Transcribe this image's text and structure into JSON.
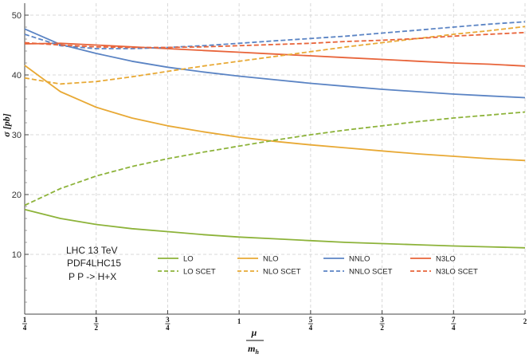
{
  "chart_data": {
    "type": "line",
    "title": "",
    "ylabel": "σ [pb]",
    "xlabel": {
      "numerator": "μ",
      "denominator": "m",
      "denominator_sub": "h"
    },
    "xlim": [
      0.25,
      2
    ],
    "ylim": [
      0,
      52
    ],
    "x": [
      0.25,
      0.375,
      0.5,
      0.625,
      0.75,
      0.875,
      1.0,
      1.125,
      1.25,
      1.375,
      1.5,
      1.625,
      1.75,
      1.875,
      2.0
    ],
    "x_ticks": [
      {
        "value": 0.25,
        "num": "1",
        "den": "4"
      },
      {
        "value": 0.5,
        "num": "1",
        "den": "2"
      },
      {
        "value": 0.75,
        "num": "3",
        "den": "4"
      },
      {
        "value": 1.0,
        "num": "1",
        "den": ""
      },
      {
        "value": 1.25,
        "num": "5",
        "den": "4"
      },
      {
        "value": 1.5,
        "num": "3",
        "den": "2"
      },
      {
        "value": 1.75,
        "num": "7",
        "den": "4"
      },
      {
        "value": 2.0,
        "num": "2",
        "den": ""
      }
    ],
    "y_ticks": [
      10,
      20,
      30,
      40,
      50
    ],
    "grid": true,
    "legend_position": "bottom-center",
    "series": [
      {
        "name": "LO",
        "style": "solid",
        "color": "#8db33a",
        "values": [
          17.5,
          16.0,
          15.0,
          14.3,
          13.8,
          13.3,
          12.9,
          12.6,
          12.3,
          12.0,
          11.8,
          11.6,
          11.4,
          11.25,
          11.1
        ]
      },
      {
        "name": "NLO",
        "style": "solid",
        "color": "#e8a935",
        "values": [
          41.6,
          37.2,
          34.6,
          32.8,
          31.5,
          30.5,
          29.6,
          28.9,
          28.3,
          27.8,
          27.3,
          26.8,
          26.4,
          26.0,
          25.7
        ]
      },
      {
        "name": "NNLO",
        "style": "solid",
        "color": "#5b84c4",
        "values": [
          47.7,
          45.1,
          43.6,
          42.3,
          41.3,
          40.5,
          39.8,
          39.2,
          38.6,
          38.1,
          37.6,
          37.2,
          36.8,
          36.5,
          36.2
        ]
      },
      {
        "name": "N3LO",
        "style": "solid",
        "color": "#e8643a",
        "values": [
          45.2,
          45.3,
          45.0,
          44.7,
          44.4,
          44.1,
          43.8,
          43.5,
          43.2,
          42.9,
          42.6,
          42.3,
          42.0,
          41.8,
          41.5
        ]
      },
      {
        "name": "LO SCET",
        "style": "dashed",
        "color": "#8db33a",
        "values": [
          18.2,
          21.0,
          23.1,
          24.7,
          26.0,
          27.1,
          28.1,
          29.1,
          30.0,
          30.8,
          31.5,
          32.2,
          32.8,
          33.3,
          33.8
        ]
      },
      {
        "name": "NLO SCET",
        "style": "dashed",
        "color": "#e8a935",
        "values": [
          39.5,
          38.5,
          38.9,
          39.7,
          40.6,
          41.5,
          42.3,
          43.1,
          43.9,
          44.7,
          45.4,
          46.1,
          46.8,
          47.4,
          48.1
        ]
      },
      {
        "name": "NNLO SCET",
        "style": "dashed",
        "color": "#5b84c4",
        "values": [
          46.8,
          44.9,
          44.4,
          44.4,
          44.6,
          44.9,
          45.3,
          45.7,
          46.1,
          46.5,
          47.0,
          47.5,
          48.0,
          48.5,
          48.9
        ]
      },
      {
        "name": "N3LO SCET",
        "style": "dashed",
        "color": "#e8643a",
        "values": [
          45.4,
          45.0,
          44.7,
          44.6,
          44.6,
          44.7,
          44.9,
          45.1,
          45.3,
          45.6,
          45.8,
          46.1,
          46.5,
          46.8,
          47.1
        ]
      }
    ],
    "annotations": [
      "LHC 13 TeV",
      "PDF4LHC15",
      "P P -> H+X"
    ]
  }
}
